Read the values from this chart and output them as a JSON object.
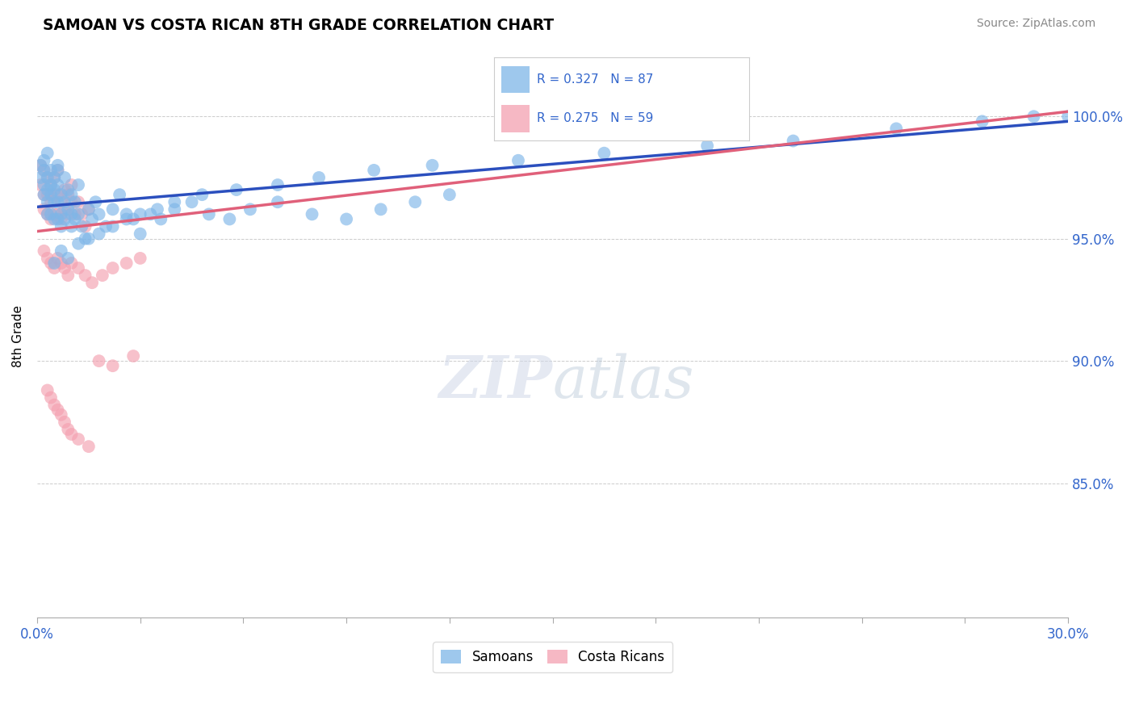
{
  "title": "SAMOAN VS COSTA RICAN 8TH GRADE CORRELATION CHART",
  "source": "Source: ZipAtlas.com",
  "ylabel": "8th Grade",
  "xlim": [
    0.0,
    0.3
  ],
  "ylim": [
    0.795,
    1.025
  ],
  "ytick_positions": [
    0.85,
    0.9,
    0.95,
    1.0
  ],
  "ytick_labels": [
    "85.0%",
    "90.0%",
    "95.0%",
    "100.0%"
  ],
  "samoan_color": "#7EB6E8",
  "costa_rican_color": "#F4A0B0",
  "samoan_line_color": "#2B4FBE",
  "costa_rican_line_color": "#E0607A",
  "watermark_zip": "ZIP",
  "watermark_atlas": "atlas",
  "samoan_x": [
    0.001,
    0.001,
    0.002,
    0.002,
    0.002,
    0.002,
    0.003,
    0.003,
    0.003,
    0.003,
    0.004,
    0.004,
    0.004,
    0.004,
    0.005,
    0.005,
    0.005,
    0.005,
    0.006,
    0.006,
    0.006,
    0.006,
    0.007,
    0.007,
    0.007,
    0.008,
    0.008,
    0.008,
    0.009,
    0.009,
    0.01,
    0.01,
    0.01,
    0.011,
    0.011,
    0.012,
    0.012,
    0.013,
    0.014,
    0.015,
    0.016,
    0.017,
    0.018,
    0.02,
    0.022,
    0.024,
    0.026,
    0.028,
    0.03,
    0.033,
    0.036,
    0.04,
    0.045,
    0.05,
    0.056,
    0.062,
    0.07,
    0.08,
    0.09,
    0.1,
    0.11,
    0.12,
    0.005,
    0.007,
    0.009,
    0.012,
    0.015,
    0.018,
    0.022,
    0.026,
    0.03,
    0.035,
    0.04,
    0.048,
    0.058,
    0.07,
    0.082,
    0.098,
    0.115,
    0.14,
    0.165,
    0.195,
    0.22,
    0.25,
    0.275,
    0.29,
    0.3,
    0.003,
    0.006
  ],
  "samoan_y": [
    0.98,
    0.975,
    0.982,
    0.972,
    0.968,
    0.978,
    0.975,
    0.97,
    0.965,
    0.96,
    0.978,
    0.968,
    0.96,
    0.972,
    0.975,
    0.97,
    0.965,
    0.958,
    0.98,
    0.972,
    0.965,
    0.958,
    0.968,
    0.96,
    0.955,
    0.975,
    0.965,
    0.958,
    0.97,
    0.962,
    0.968,
    0.96,
    0.955,
    0.965,
    0.958,
    0.972,
    0.96,
    0.955,
    0.95,
    0.962,
    0.958,
    0.965,
    0.96,
    0.955,
    0.962,
    0.968,
    0.96,
    0.958,
    0.952,
    0.96,
    0.958,
    0.962,
    0.965,
    0.96,
    0.958,
    0.962,
    0.965,
    0.96,
    0.958,
    0.962,
    0.965,
    0.968,
    0.94,
    0.945,
    0.942,
    0.948,
    0.95,
    0.952,
    0.955,
    0.958,
    0.96,
    0.962,
    0.965,
    0.968,
    0.97,
    0.972,
    0.975,
    0.978,
    0.98,
    0.982,
    0.985,
    0.988,
    0.99,
    0.995,
    0.998,
    1.0,
    1.0,
    0.985,
    0.978
  ],
  "costa_x": [
    0.001,
    0.001,
    0.002,
    0.002,
    0.002,
    0.003,
    0.003,
    0.003,
    0.004,
    0.004,
    0.004,
    0.005,
    0.005,
    0.005,
    0.006,
    0.006,
    0.006,
    0.007,
    0.007,
    0.008,
    0.008,
    0.009,
    0.009,
    0.01,
    0.01,
    0.011,
    0.012,
    0.013,
    0.014,
    0.015,
    0.002,
    0.003,
    0.004,
    0.005,
    0.006,
    0.007,
    0.008,
    0.009,
    0.01,
    0.012,
    0.014,
    0.016,
    0.019,
    0.022,
    0.026,
    0.03,
    0.018,
    0.022,
    0.028,
    0.003,
    0.004,
    0.005,
    0.006,
    0.007,
    0.008,
    0.009,
    0.01,
    0.012,
    0.015
  ],
  "costa_y": [
    0.98,
    0.972,
    0.978,
    0.968,
    0.962,
    0.975,
    0.968,
    0.96,
    0.972,
    0.965,
    0.958,
    0.975,
    0.968,
    0.96,
    0.978,
    0.968,
    0.96,
    0.965,
    0.958,
    0.97,
    0.962,
    0.968,
    0.96,
    0.972,
    0.965,
    0.96,
    0.965,
    0.96,
    0.955,
    0.962,
    0.945,
    0.942,
    0.94,
    0.938,
    0.942,
    0.94,
    0.938,
    0.935,
    0.94,
    0.938,
    0.935,
    0.932,
    0.935,
    0.938,
    0.94,
    0.942,
    0.9,
    0.898,
    0.902,
    0.888,
    0.885,
    0.882,
    0.88,
    0.878,
    0.875,
    0.872,
    0.87,
    0.868,
    0.865
  ],
  "samoan_line_x": [
    0.0,
    0.3
  ],
  "samoan_line_y": [
    0.963,
    0.998
  ],
  "costa_line_x": [
    0.0,
    0.3
  ],
  "costa_line_y": [
    0.953,
    1.002
  ]
}
